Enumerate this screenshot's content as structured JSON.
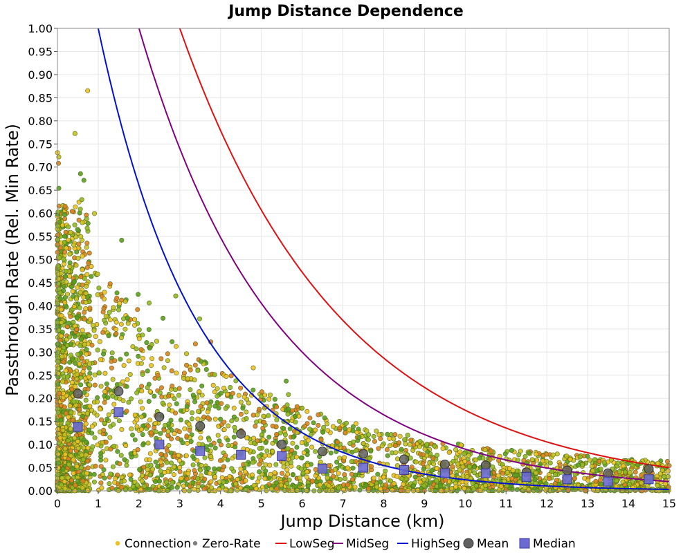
{
  "chart_data": {
    "type": "scatter",
    "title": "Jump Distance Dependence",
    "xlabel": "Jump Distance (km)",
    "ylabel": "Passthrough Rate (Rel. Min Rate)",
    "xlim": [
      0,
      15
    ],
    "ylim": [
      0,
      1.0
    ],
    "x_ticks": [
      "0",
      "1",
      "2",
      "3",
      "4",
      "5",
      "6",
      "7",
      "8",
      "9",
      "10",
      "11",
      "12",
      "13",
      "14",
      "15"
    ],
    "y_ticks": [
      "0.00",
      "0.05",
      "0.10",
      "0.15",
      "0.20",
      "0.25",
      "0.30",
      "0.35",
      "0.40",
      "0.45",
      "0.50",
      "0.55",
      "0.60",
      "0.65",
      "0.70",
      "0.75",
      "0.80",
      "0.85",
      "0.90",
      "0.95",
      "1.00"
    ],
    "grid": true,
    "legend_position": "bottom",
    "legend": [
      {
        "label": "Connection",
        "kind": "dot",
        "color": "#f0c020"
      },
      {
        "label": "Zero-Rate",
        "kind": "dot",
        "color": "#808080"
      },
      {
        "label": "LowSeg",
        "kind": "line",
        "color": "#e01010"
      },
      {
        "label": "MidSeg",
        "kind": "line",
        "color": "#800080"
      },
      {
        "label": "HighSeg",
        "kind": "line",
        "color": "#0010d0"
      },
      {
        "label": "Mean",
        "kind": "circle",
        "color": "#606060"
      },
      {
        "label": "Median",
        "kind": "square",
        "color": "#6a6ad0"
      }
    ],
    "curves": [
      {
        "name": "LowSeg",
        "color": "#e01010",
        "model": "exponential",
        "y_at_3km": 1.0,
        "y_at_15km": 0.05
      },
      {
        "name": "MidSeg",
        "color": "#800080",
        "model": "exponential",
        "y_at_2km": 1.0,
        "y_at_15km": 0.02
      },
      {
        "name": "HighSeg",
        "color": "#0010d0",
        "model": "exponential",
        "y_at_1km": 1.0,
        "y_at_15km": 0.0
      }
    ],
    "mean": {
      "x": [
        0.5,
        1.5,
        2.5,
        3.5,
        4.5,
        5.5,
        6.5,
        7.5,
        8.5,
        9.5,
        10.5,
        11.5,
        12.5,
        13.5,
        14.5
      ],
      "y": [
        0.21,
        0.215,
        0.16,
        0.14,
        0.123,
        0.1,
        0.085,
        0.08,
        0.068,
        0.057,
        0.055,
        0.04,
        0.044,
        0.038,
        0.047
      ]
    },
    "median": {
      "x": [
        0.5,
        1.5,
        2.5,
        3.5,
        4.5,
        5.5,
        6.5,
        7.5,
        8.5,
        9.5,
        10.5,
        11.5,
        12.5,
        13.5,
        14.5
      ],
      "y": [
        0.138,
        0.17,
        0.1,
        0.086,
        0.078,
        0.075,
        0.048,
        0.05,
        0.045,
        0.038,
        0.038,
        0.03,
        0.025,
        0.02,
        0.025
      ]
    },
    "connection_points_note": "dense scatter of several thousand points, concentrated near x=0 and y=0, decaying with distance",
    "connection_colors": [
      "#f0c020",
      "#c8c020",
      "#90b820",
      "#58a020",
      "#e08020"
    ]
  }
}
